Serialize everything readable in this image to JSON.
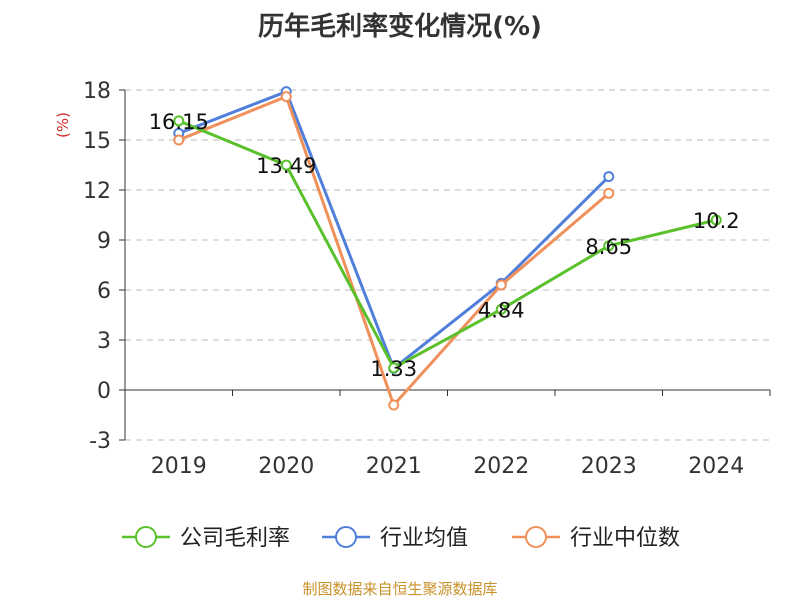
{
  "chart_data": {
    "type": "line",
    "title": "历年毛利率变化情况(%)",
    "ylabel": "(%)",
    "categories": [
      "2019",
      "2020",
      "2021",
      "2022",
      "2023",
      "2024"
    ],
    "ylim": [
      -3,
      18
    ],
    "yticks": [
      "-3",
      "0",
      "3",
      "6",
      "9",
      "12",
      "15",
      "18"
    ],
    "grid": true,
    "legend_position": "bottom",
    "series": [
      {
        "name": "公司毛利率",
        "color": "#5ac12d",
        "values": [
          16.15,
          13.49,
          1.33,
          4.84,
          8.65,
          10.2
        ],
        "labels": [
          "16.15",
          "13.49",
          "1.33",
          "4.84",
          "8.65",
          "10.2"
        ]
      },
      {
        "name": "行业均值",
        "color": "#4f7fdb",
        "values": [
          15.4,
          17.9,
          1.3,
          6.4,
          12.8,
          null
        ]
      },
      {
        "name": "行业中位数",
        "color": "#f0905a",
        "values": [
          15.0,
          17.6,
          -0.9,
          6.3,
          11.8,
          null
        ]
      }
    ]
  },
  "source": "制图数据来自恒生聚源数据库"
}
